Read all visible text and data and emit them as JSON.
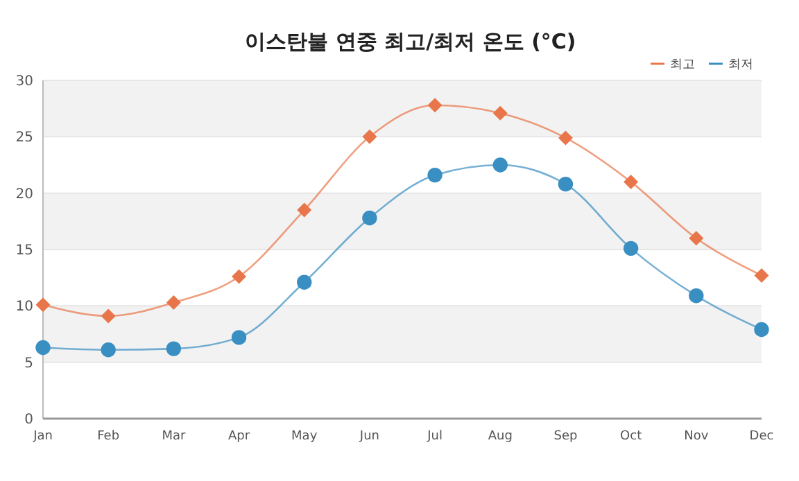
{
  "chart_data": {
    "type": "line",
    "title": "이스탄불 연중 최고/최저 온도 (°C)",
    "categories": [
      "Jan",
      "Feb",
      "Mar",
      "Apr",
      "May",
      "Jun",
      "Jul",
      "Aug",
      "Sep",
      "Oct",
      "Nov",
      "Dec"
    ],
    "series": [
      {
        "name": "최고",
        "color": "#e8764a",
        "marker": "diamond",
        "values": [
          10.1,
          9.1,
          10.3,
          12.6,
          18.5,
          25,
          27.8,
          27.1,
          24.9,
          21,
          16,
          12.7
        ]
      },
      {
        "name": "최저",
        "color": "#3a8fc2",
        "marker": "circle",
        "values": [
          6.3,
          6.1,
          6.2,
          7.2,
          12.1,
          17.8,
          21.6,
          22.5,
          20.8,
          15.1,
          10.9,
          7.9
        ]
      }
    ],
    "ylim": [
      0,
      30
    ],
    "yticks": [
      0,
      5,
      10,
      15,
      20,
      25,
      30
    ],
    "grid": "y",
    "legend": "top right"
  }
}
